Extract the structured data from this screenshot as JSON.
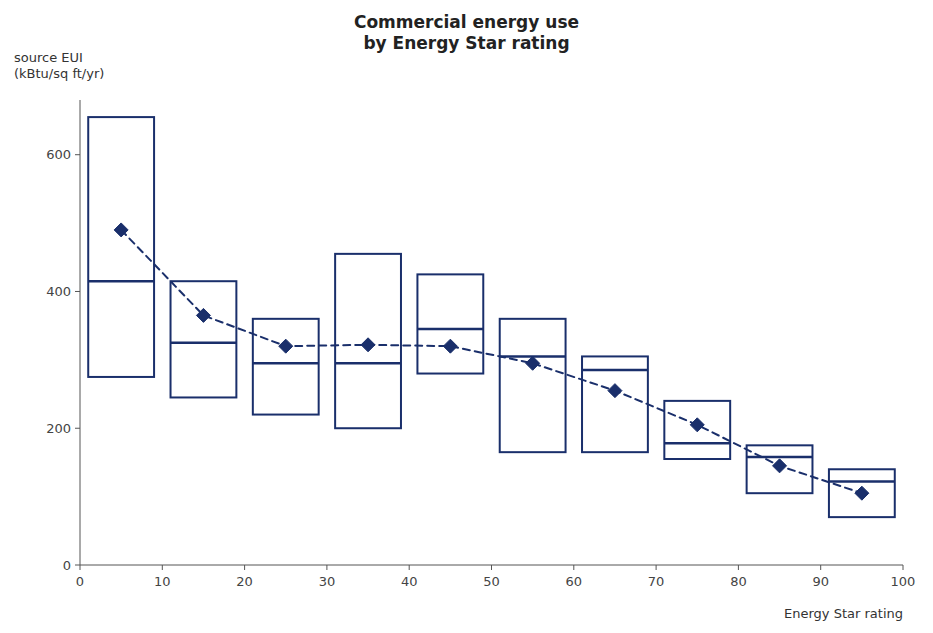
{
  "chart_data": {
    "type": "box",
    "title": "Commercial energy use\nby Energy Star rating",
    "ylabel": "source EUI\n(kBtu/sq ft/yr)",
    "xlabel": "Energy Star rating",
    "x": [
      5,
      15,
      25,
      35,
      45,
      55,
      65,
      75,
      85,
      95
    ],
    "q1": [
      275,
      245,
      220,
      200,
      280,
      165,
      165,
      155,
      105,
      70
    ],
    "median": [
      415,
      325,
      295,
      295,
      345,
      305,
      285,
      178,
      158,
      122
    ],
    "q3": [
      655,
      415,
      360,
      455,
      425,
      360,
      305,
      240,
      175,
      140
    ],
    "mean": [
      490,
      365,
      320,
      322,
      320,
      295,
      255,
      205,
      145,
      105
    ],
    "color": "#1a2f6b",
    "marker": "diamond",
    "line_style": "dashed",
    "grid": false,
    "xlim": [
      0,
      100
    ],
    "xticks": [
      0,
      10,
      20,
      30,
      40,
      50,
      60,
      70,
      80,
      90,
      100
    ],
    "ylim": [
      0,
      680
    ],
    "yticks": [
      0,
      200,
      400,
      600
    ]
  }
}
